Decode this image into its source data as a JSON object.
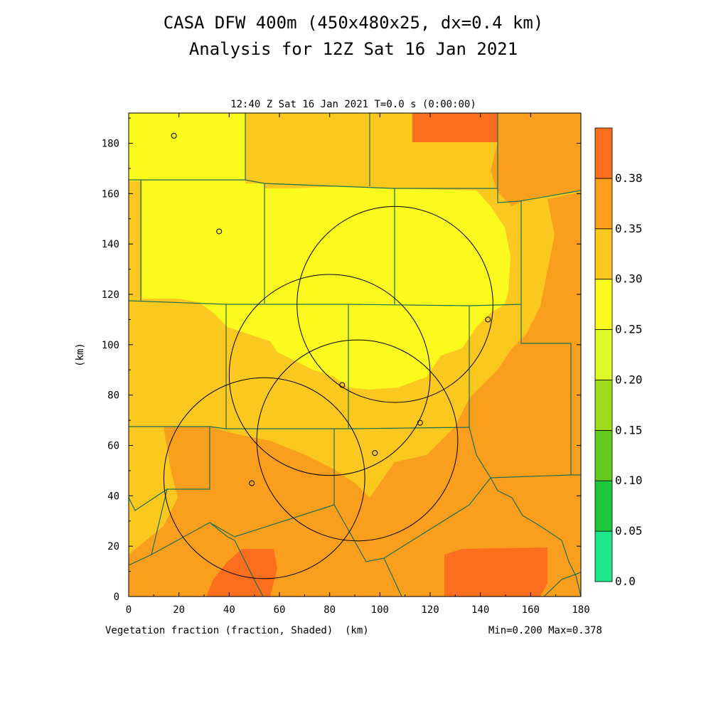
{
  "header": {
    "title_line1": "CASA DFW 400m (450x480x25, dx=0.4 km)",
    "title_line2": "Analysis for 12Z Sat 16 Jan 2021",
    "subtitle": "12:40 Z Sat 16 Jan 2021   T=0.0 s (0:00:00)"
  },
  "footer": {
    "variable_label": "Vegetation fraction (fraction, Shaded)",
    "x_unit": "(km)",
    "minmax": "Min=0.200 Max=0.378"
  },
  "axes": {
    "y_unit": "(km)",
    "x_ticks": [
      "0",
      "20",
      "40",
      "60",
      "80",
      "100",
      "120",
      "140",
      "160",
      "180"
    ],
    "y_ticks": [
      "0",
      "20",
      "40",
      "60",
      "80",
      "100",
      "120",
      "140",
      "160",
      "180"
    ],
    "x_range": [
      0,
      180
    ],
    "y_range": [
      0,
      192
    ]
  },
  "colorbar": {
    "labels": [
      "0.0",
      "0.05",
      "0.10",
      "0.15",
      "0.20",
      "0.25",
      "0.30",
      "0.35",
      "0.38"
    ],
    "colors": [
      "#1ee68c",
      "#1ec83c",
      "#64c81e",
      "#a0dc1e",
      "#dcfa28",
      "#fafa1e",
      "#fac81e",
      "#fa9e1e",
      "#fa6e1e"
    ]
  },
  "field_colors": {
    "c020": "#fafa1e",
    "c025": "#fac81e",
    "c030": "#fa9e1e",
    "c035": "#fa6e1e"
  },
  "radars": [
    {
      "x": 80,
      "y": 88,
      "r": 40
    },
    {
      "x": 106,
      "y": 116,
      "r": 39
    },
    {
      "x": 54,
      "y": 47,
      "r": 40
    },
    {
      "x": 91,
      "y": 62,
      "r": 40
    }
  ],
  "stations": [
    {
      "x": 18,
      "y": 183
    },
    {
      "x": 36,
      "y": 145
    },
    {
      "x": 143,
      "y": 110
    },
    {
      "x": 85,
      "y": 84
    },
    {
      "x": 116,
      "y": 69
    },
    {
      "x": 98,
      "y": 57
    },
    {
      "x": 49,
      "y": 45
    }
  ]
}
